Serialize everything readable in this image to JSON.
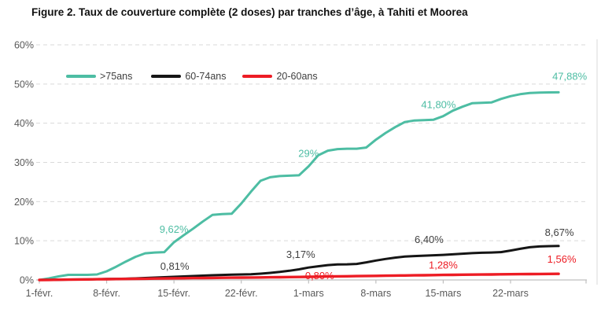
{
  "colors": {
    "teal": "#4dbda3",
    "black_series": "#151515",
    "red": "#ed1c24",
    "axis_text": "#595959",
    "gridline": "#d9d9d9",
    "axis_line": "#bfbfbf",
    "dark_label": "#3f3f3f",
    "title_text": "#111111",
    "background": "#ffffff"
  },
  "chart_data": {
    "type": "line",
    "title": "Figure 2. Taux de couverture complète (2 doses) par tranches d’âge, à Tahiti et Moorea",
    "legend_position": "top-left-inside",
    "x_axis": {
      "tick_days": [
        0,
        7,
        14,
        21,
        28,
        35,
        42,
        49
      ],
      "tick_labels": [
        "1-févr.",
        "8-févr.",
        "15-févr.",
        "22-févr.",
        "1-mars",
        "8-mars",
        "15-mars",
        "22-mars"
      ]
    },
    "y_axis": {
      "ylim": [
        0,
        60
      ],
      "tick_values": [
        0,
        10,
        20,
        30,
        40,
        50,
        60
      ],
      "tick_labels": [
        "0%",
        "10%",
        "20%",
        "30%",
        "40%",
        "50%",
        "60%"
      ],
      "grid": "dashed-horizontal"
    },
    "days_total": 55,
    "series": [
      {
        "name": ">75ans",
        "color": "#4dbda3",
        "label_color": "#4dbda3",
        "stroke_width": 3,
        "values": [
          0,
          0.4,
          0.9,
          1.3,
          1.3,
          1.3,
          1.4,
          2.2,
          3.4,
          4.7,
          5.9,
          6.8,
          7.0,
          7.1,
          9.62,
          11.4,
          13.1,
          14.9,
          16.6,
          16.8,
          16.9,
          19.5,
          22.5,
          25.3,
          26.2,
          26.5,
          26.6,
          26.7,
          29.0,
          31.8,
          33.0,
          33.4,
          33.5,
          33.5,
          33.8,
          35.8,
          37.5,
          39.0,
          40.3,
          40.7,
          40.8,
          40.9,
          41.8,
          43.2,
          44.2,
          45.1,
          45.2,
          45.3,
          46.2,
          46.9,
          47.4,
          47.7,
          47.8,
          47.85,
          47.88
        ],
        "point_labels": [
          {
            "day": 14,
            "text": "9,62%",
            "dx": 0,
            "dy": -12
          },
          {
            "day": 28,
            "text": "29%",
            "dx": 0,
            "dy": -12
          },
          {
            "day": 42,
            "text": "41,80%",
            "dx": -6,
            "dy": -10
          },
          {
            "day": 54,
            "text": "47,88%",
            "dx": 14,
            "dy": -16
          }
        ]
      },
      {
        "name": "60-74ans",
        "color": "#151515",
        "label_color": "#3f3f3f",
        "stroke_width": 3,
        "values": [
          0,
          0.03,
          0.06,
          0.1,
          0.13,
          0.16,
          0.2,
          0.24,
          0.28,
          0.33,
          0.4,
          0.5,
          0.6,
          0.7,
          0.81,
          0.9,
          1.0,
          1.1,
          1.2,
          1.28,
          1.35,
          1.4,
          1.45,
          1.6,
          1.8,
          2.05,
          2.35,
          2.7,
          3.17,
          3.5,
          3.8,
          3.95,
          4.0,
          4.1,
          4.5,
          4.95,
          5.35,
          5.7,
          5.95,
          6.1,
          6.2,
          6.3,
          6.4,
          6.55,
          6.7,
          6.85,
          6.95,
          7.0,
          7.1,
          7.5,
          7.95,
          8.35,
          8.55,
          8.63,
          8.67
        ],
        "point_labels": [
          {
            "day": 14,
            "text": "0,81%",
            "dx": 1,
            "dy": -9
          },
          {
            "day": 28,
            "text": "3,17%",
            "dx": -10,
            "dy": -12
          },
          {
            "day": 42,
            "text": "6,40%",
            "dx": -18,
            "dy": -15
          },
          {
            "day": 54,
            "text": "8,67%",
            "dx": 1,
            "dy": -13
          }
        ]
      },
      {
        "name": "20-60ans",
        "color": "#ed1c24",
        "label_color": "#ed1c24",
        "stroke_width": 3.4,
        "values": [
          0,
          0.03,
          0.06,
          0.09,
          0.12,
          0.15,
          0.18,
          0.21,
          0.24,
          0.27,
          0.3,
          0.33,
          0.36,
          0.39,
          0.42,
          0.45,
          0.48,
          0.51,
          0.53,
          0.56,
          0.58,
          0.6,
          0.62,
          0.65,
          0.68,
          0.71,
          0.74,
          0.77,
          0.8,
          0.84,
          0.88,
          0.92,
          0.95,
          0.98,
          1.02,
          1.05,
          1.08,
          1.12,
          1.15,
          1.18,
          1.21,
          1.25,
          1.28,
          1.31,
          1.34,
          1.37,
          1.39,
          1.41,
          1.44,
          1.46,
          1.48,
          1.5,
          1.52,
          1.54,
          1.56
        ],
        "point_labels": [
          {
            "day": 28,
            "text": "0,80%",
            "dx": 14,
            "dy": 3
          },
          {
            "day": 42,
            "text": "1,28%",
            "dx": 0,
            "dy": -8
          },
          {
            "day": 54,
            "text": "1,56%",
            "dx": 4,
            "dy": -14
          }
        ]
      }
    ]
  }
}
